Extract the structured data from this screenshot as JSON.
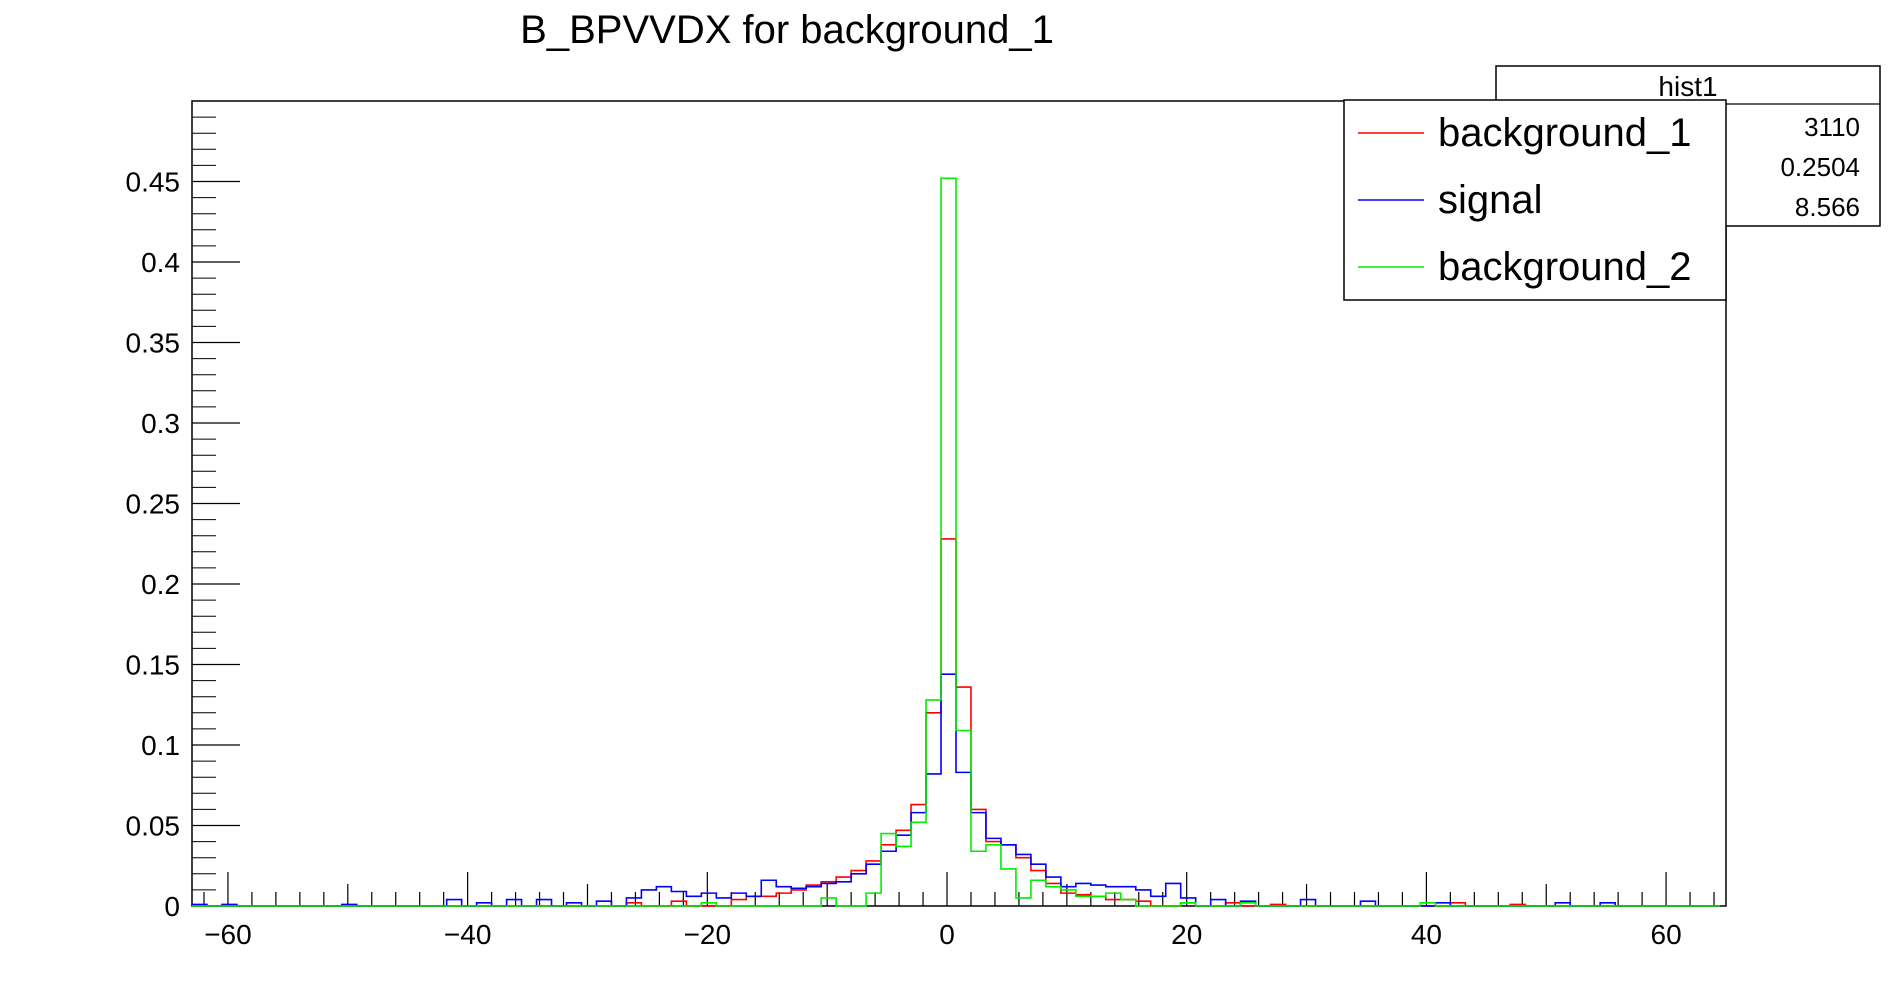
{
  "chart_data": {
    "type": "histogram",
    "title": "B_BPVVDX for background_1",
    "xlabel": "",
    "ylabel": "",
    "xlim": [
      -63,
      65
    ],
    "ylim": [
      0,
      0.5
    ],
    "x_ticks": [
      -60,
      -40,
      -20,
      0,
      20,
      40,
      60
    ],
    "x_tick_labels": [
      "−60",
      "−40",
      "−20",
      "0",
      "20",
      "40",
      "60"
    ],
    "y_ticks": [
      0,
      0.05,
      0.1,
      0.15,
      0.2,
      0.25,
      0.3,
      0.35,
      0.4,
      0.45
    ],
    "y_tick_labels": [
      "0",
      "0.05",
      "0.1",
      "0.15",
      "0.2",
      "0.25",
      "0.3",
      "0.35",
      "0.4",
      "0.45"
    ],
    "bin_edges_range": [
      -63,
      65
    ],
    "bin_width": 1.25,
    "grid": false,
    "legend_position": "top-right",
    "stats_box": {
      "title": "hist1",
      "values": [
        "3110",
        "0.2504",
        "8.566"
      ]
    },
    "series": [
      {
        "name": "background_1",
        "color": "#ff0000",
        "points": [
          [
            -26,
            0.002
          ],
          [
            -22,
            0.003
          ],
          [
            -18,
            0.004
          ],
          [
            -16,
            0.006
          ],
          [
            -14.75,
            0.006
          ],
          [
            -13.5,
            0.008
          ],
          [
            -12.25,
            0.01
          ],
          [
            -11,
            0.013
          ],
          [
            -9.75,
            0.015
          ],
          [
            -8.5,
            0.018
          ],
          [
            -7.25,
            0.022
          ],
          [
            -6,
            0.028
          ],
          [
            -4.75,
            0.038
          ],
          [
            -3.5,
            0.047
          ],
          [
            -2.25,
            0.063
          ],
          [
            -1,
            0.12
          ],
          [
            0.25,
            0.228
          ],
          [
            1.5,
            0.136
          ],
          [
            2.75,
            0.06
          ],
          [
            4,
            0.04
          ],
          [
            5.25,
            0.038
          ],
          [
            6.5,
            0.03
          ],
          [
            7.75,
            0.022
          ],
          [
            9,
            0.014
          ],
          [
            10.25,
            0.008
          ],
          [
            11.5,
            0.007
          ],
          [
            12.75,
            0.006
          ],
          [
            14,
            0.004
          ],
          [
            15.25,
            0.004
          ],
          [
            16.5,
            0.003
          ],
          [
            20,
            0.002
          ],
          [
            24,
            0.002
          ],
          [
            28,
            0.001
          ],
          [
            42,
            0.002
          ],
          [
            47,
            0.001
          ]
        ]
      },
      {
        "name": "signal",
        "color": "#0000ff",
        "points": [
          [
            -63,
            0.001
          ],
          [
            -60.5,
            0.001
          ],
          [
            -50.5,
            0.001
          ],
          [
            -41,
            0.004
          ],
          [
            -38.5,
            0.002
          ],
          [
            -36,
            0.004
          ],
          [
            -33.5,
            0.004
          ],
          [
            -31,
            0.002
          ],
          [
            -28.5,
            0.003
          ],
          [
            -26,
            0.005
          ],
          [
            -24.75,
            0.01
          ],
          [
            -23.5,
            0.012
          ],
          [
            -22.25,
            0.009
          ],
          [
            -21,
            0.006
          ],
          [
            -19.75,
            0.008
          ],
          [
            -18.5,
            0.005
          ],
          [
            -17.25,
            0.008
          ],
          [
            -16,
            0.006
          ],
          [
            -14.75,
            0.016
          ],
          [
            -13.5,
            0.012
          ],
          [
            -12.25,
            0.011
          ],
          [
            -11,
            0.012
          ],
          [
            -9.75,
            0.014
          ],
          [
            -8.5,
            0.015
          ],
          [
            -7.25,
            0.02
          ],
          [
            -6,
            0.026
          ],
          [
            -4.75,
            0.034
          ],
          [
            -3.5,
            0.044
          ],
          [
            -2.25,
            0.058
          ],
          [
            -1,
            0.082
          ],
          [
            0.25,
            0.144
          ],
          [
            1.5,
            0.083
          ],
          [
            2.75,
            0.058
          ],
          [
            4,
            0.042
          ],
          [
            5.25,
            0.038
          ],
          [
            6.5,
            0.032
          ],
          [
            7.75,
            0.026
          ],
          [
            9,
            0.018
          ],
          [
            10.25,
            0.012
          ],
          [
            11.5,
            0.014
          ],
          [
            12.75,
            0.013
          ],
          [
            14,
            0.012
          ],
          [
            15.25,
            0.012
          ],
          [
            16.5,
            0.01
          ],
          [
            17.75,
            0.006
          ],
          [
            19,
            0.014
          ],
          [
            20.25,
            0.005
          ],
          [
            22.75,
            0.004
          ],
          [
            25.25,
            0.003
          ],
          [
            30,
            0.004
          ],
          [
            35,
            0.003
          ],
          [
            41,
            0.002
          ],
          [
            51,
            0.002
          ],
          [
            55,
            0.002
          ]
        ]
      },
      {
        "name": "background_2",
        "color": "#00ee00",
        "points": [
          [
            -20,
            0.002
          ],
          [
            -10.5,
            0.005
          ],
          [
            -8.5,
            0.0
          ],
          [
            -6,
            0.008
          ],
          [
            -4.75,
            0.045
          ],
          [
            -3.5,
            0.037
          ],
          [
            -2.25,
            0.052
          ],
          [
            -1,
            0.128
          ],
          [
            0.25,
            0.452
          ],
          [
            1.5,
            0.109
          ],
          [
            2.75,
            0.034
          ],
          [
            4,
            0.038
          ],
          [
            5.25,
            0.023
          ],
          [
            6.5,
            0.005
          ],
          [
            7.75,
            0.016
          ],
          [
            9,
            0.012
          ],
          [
            10.25,
            0.01
          ],
          [
            11.5,
            0.006
          ],
          [
            12.75,
            0.006
          ],
          [
            14,
            0.008
          ],
          [
            15.25,
            0.004
          ],
          [
            20,
            0.002
          ],
          [
            25,
            0.002
          ],
          [
            40,
            0.002
          ]
        ]
      }
    ]
  }
}
